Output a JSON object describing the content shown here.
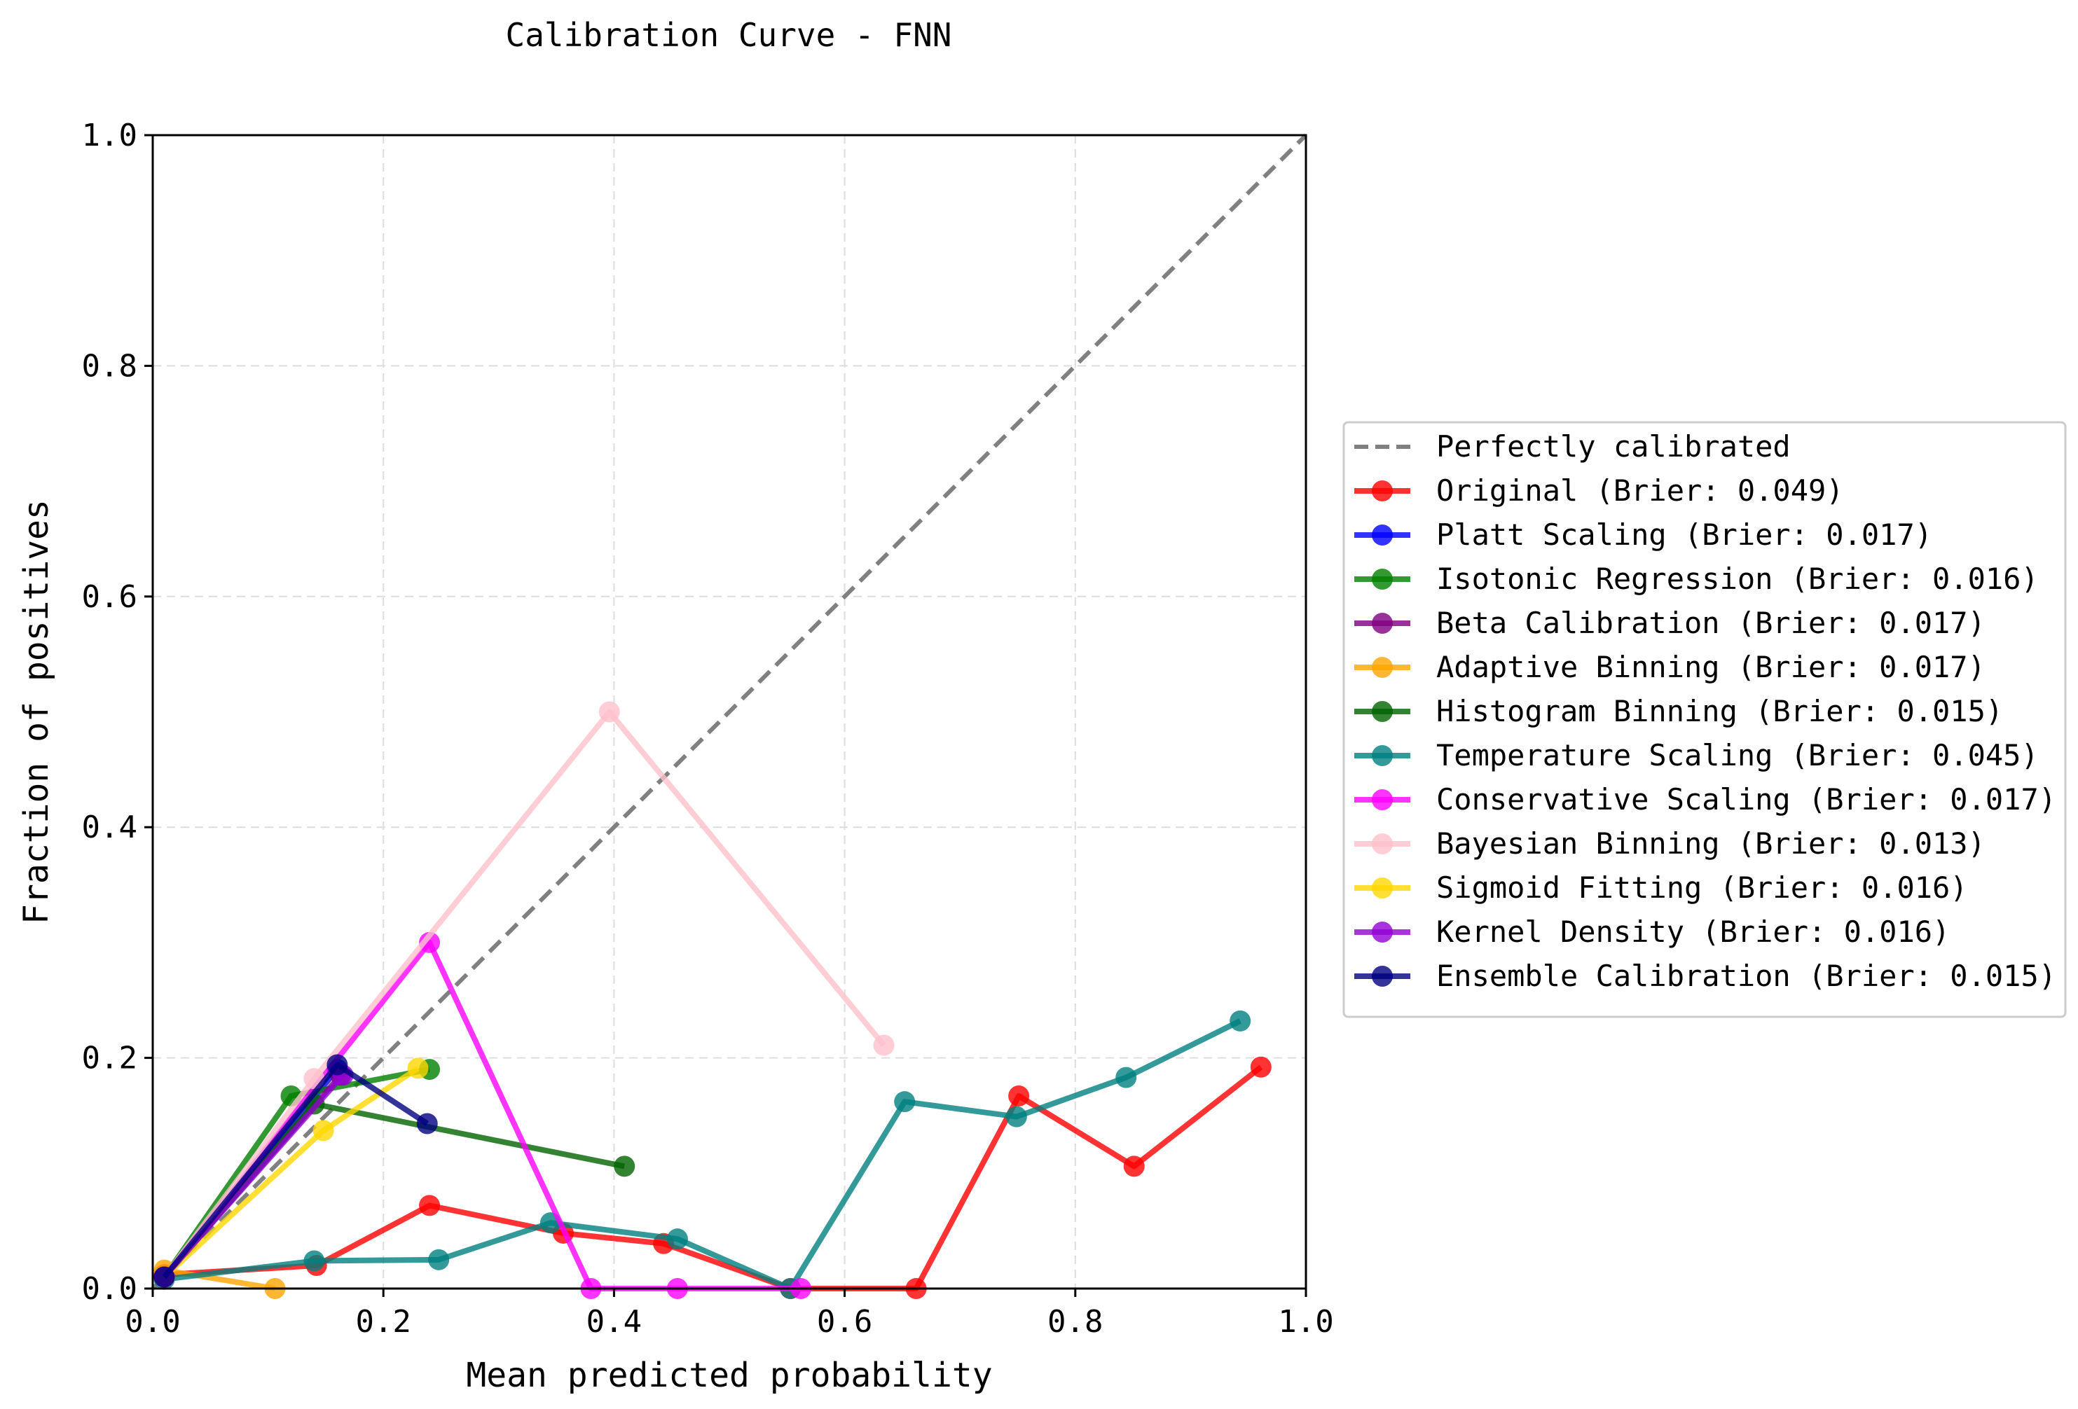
{
  "chart_data": {
    "type": "line",
    "title": "Calibration Curve - FNN",
    "xlabel": "Mean predicted probability",
    "ylabel": "Fraction of positives",
    "xlim": [
      0.0,
      1.0
    ],
    "ylim": [
      0.0,
      1.0
    ],
    "xticks": [
      "0.0",
      "0.2",
      "0.4",
      "0.6",
      "0.8",
      "1.0"
    ],
    "yticks": [
      "0.0",
      "0.2",
      "0.4",
      "0.6",
      "0.8",
      "1.0"
    ],
    "grid": true,
    "legend_position": "outside-right",
    "reference": {
      "name": "Perfectly calibrated",
      "color": "#808080",
      "x": [
        0,
        1
      ],
      "y": [
        0,
        1
      ]
    },
    "series": [
      {
        "name": "Original (Brier: 0.049)",
        "color": "#ff0000",
        "x": [
          0.01,
          0.142,
          0.24,
          0.356,
          0.443,
          0.553,
          0.662,
          0.751,
          0.851,
          0.961
        ],
        "y": [
          0.012,
          0.02,
          0.072,
          0.048,
          0.039,
          0.0,
          0.0,
          0.167,
          0.106,
          0.192
        ]
      },
      {
        "name": "Platt Scaling (Brier: 0.017)",
        "color": "#0000ff",
        "x": [
          0.01,
          0.16
        ],
        "y": [
          0.01,
          0.19
        ]
      },
      {
        "name": "Isotonic Regression (Brier: 0.016)",
        "color": "#008000",
        "x": [
          0.01,
          0.12,
          0.24
        ],
        "y": [
          0.01,
          0.167,
          0.19
        ]
      },
      {
        "name": "Beta Calibration (Brier: 0.017)",
        "color": "#800080",
        "x": [
          0.01,
          0.163
        ],
        "y": [
          0.01,
          0.185
        ]
      },
      {
        "name": "Adaptive Binning (Brier: 0.017)",
        "color": "#ffa500",
        "x": [
          0.01,
          0.106
        ],
        "y": [
          0.016,
          0.0
        ]
      },
      {
        "name": "Histogram Binning (Brier: 0.015)",
        "color": "#006400",
        "x": [
          0.01,
          0.14,
          0.409
        ],
        "y": [
          0.01,
          0.16,
          0.106
        ]
      },
      {
        "name": "Temperature Scaling (Brier: 0.045)",
        "color": "#008080",
        "x": [
          0.01,
          0.14,
          0.248,
          0.345,
          0.455,
          0.553,
          0.652,
          0.749,
          0.844,
          0.943
        ],
        "y": [
          0.008,
          0.024,
          0.025,
          0.057,
          0.043,
          0.0,
          0.162,
          0.149,
          0.183,
          0.232
        ]
      },
      {
        "name": "Conservative Scaling (Brier: 0.017)",
        "color": "#ff00ff",
        "x": [
          0.01,
          0.24,
          0.38,
          0.455,
          0.562
        ],
        "y": [
          0.01,
          0.3,
          0.0,
          0.0,
          0.0
        ]
      },
      {
        "name": "Bayesian Binning (Brier: 0.013)",
        "color": "#ffc0cb",
        "x": [
          0.01,
          0.14,
          0.396,
          0.634
        ],
        "y": [
          0.01,
          0.182,
          0.5,
          0.211
        ]
      },
      {
        "name": "Sigmoid Fitting (Brier: 0.016)",
        "color": "#ffd700",
        "x": [
          0.01,
          0.148,
          0.23
        ],
        "y": [
          0.01,
          0.137,
          0.191
        ]
      },
      {
        "name": "Kernel Density (Brier: 0.016)",
        "color": "#9400d3",
        "x": [
          0.01,
          0.165
        ],
        "y": [
          0.01,
          0.185
        ]
      },
      {
        "name": "Ensemble Calibration (Brier: 0.015)",
        "color": "#000080",
        "x": [
          0.01,
          0.16,
          0.238
        ],
        "y": [
          0.01,
          0.194,
          0.143
        ]
      }
    ]
  }
}
